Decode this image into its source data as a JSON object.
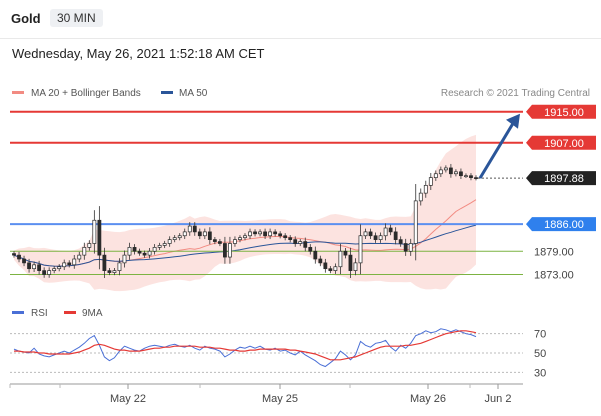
{
  "header": {
    "instrument": "Gold",
    "timeframe": "30 MIN"
  },
  "datetime": "Wednesday, May 26, 2021 1:52:18 AM CET",
  "legend": {
    "items": [
      {
        "label": "MA 20 + Bollinger Bands",
        "color": "#f28b82"
      },
      {
        "label": "MA 50",
        "color": "#2a5599"
      }
    ],
    "copyright": "Research © 2021 Trading Central"
  },
  "rsi_legend": {
    "items": [
      {
        "label": "RSI",
        "color": "#4a6fd6"
      },
      {
        "label": "9MA",
        "color": "#e53935"
      }
    ]
  },
  "chart_data": [
    {
      "type": "candlestick",
      "ylim": [
        1869,
        1917
      ],
      "levels": [
        {
          "value": "1915.00",
          "num": 1915.0,
          "kind": "resistance",
          "color": "#e53935"
        },
        {
          "value": "1907.00",
          "num": 1907.0,
          "kind": "resistance",
          "color": "#e53935"
        },
        {
          "value": "1897.88",
          "num": 1897.88,
          "kind": "last-price",
          "color": "#222222"
        },
        {
          "value": "1886.00",
          "num": 1886.0,
          "kind": "pivot",
          "color": "#2f80ed"
        },
        {
          "value": "1879.00",
          "num": 1879.0,
          "kind": "support",
          "color": "#7cb342"
        },
        {
          "value": "1873.00",
          "num": 1873.0,
          "kind": "support",
          "color": "#7cb342"
        }
      ],
      "x_tick_labels": [
        "May 22",
        "May 25",
        "May 26",
        "Jun 2"
      ],
      "close": [
        1878,
        1877,
        1876,
        1874.5,
        1875.5,
        1874,
        1873,
        1874,
        1874.5,
        1875,
        1876,
        1875.5,
        1877,
        1878,
        1880,
        1881,
        1887,
        1878,
        1874,
        1873.5,
        1874,
        1876,
        1878,
        1880,
        1879,
        1878.5,
        1878,
        1879,
        1880,
        1880.5,
        1881,
        1882,
        1882.5,
        1883,
        1884,
        1885.5,
        1884,
        1883,
        1884,
        1882,
        1881.5,
        1881,
        1877.5,
        1881,
        1882,
        1882.5,
        1883,
        1884,
        1883.5,
        1884,
        1883,
        1884,
        1883.5,
        1883,
        1882.5,
        1882,
        1881,
        1881.5,
        1880,
        1879,
        1877,
        1876,
        1874.5,
        1874,
        1875,
        1879,
        1878,
        1874,
        1876,
        1883,
        1884,
        1883,
        1882,
        1883,
        1885,
        1884,
        1882,
        1881,
        1879,
        1881,
        1892,
        1894,
        1896,
        1898,
        1899,
        1900,
        1900.5,
        1899,
        1899.5,
        1898.5,
        1898.5,
        1898,
        1897.88
      ]
    },
    {
      "type": "line",
      "title": "RSI",
      "ylim": [
        20,
        80
      ],
      "y_ticks": [
        "70",
        "50",
        "30"
      ],
      "rsi": [
        54,
        52,
        51,
        50,
        55,
        49,
        47,
        46,
        48,
        50,
        52,
        50,
        53,
        56,
        60,
        65,
        68,
        58,
        46,
        42,
        45,
        52,
        57,
        55,
        53,
        52,
        55,
        57,
        58,
        57,
        56,
        58,
        59,
        57,
        56,
        58,
        55,
        53,
        57,
        55,
        54,
        52,
        46,
        49,
        53,
        56,
        55,
        57,
        55,
        57,
        54,
        53,
        55,
        52,
        53,
        50,
        48,
        52,
        48,
        45,
        42,
        38,
        36,
        40,
        44,
        52,
        48,
        43,
        48,
        62,
        58,
        56,
        60,
        61,
        63,
        56,
        52,
        58,
        55,
        60,
        68,
        70,
        73,
        71,
        72,
        75,
        74,
        72,
        74,
        72,
        70,
        69,
        67
      ],
      "ma9": [
        52,
        52,
        51,
        51,
        51,
        50,
        50,
        49,
        49,
        49,
        49,
        49,
        50,
        51,
        53,
        55,
        58,
        59,
        58,
        56,
        54,
        53,
        53,
        52,
        52,
        52,
        53,
        54,
        55,
        55,
        56,
        56,
        57,
        57,
        57,
        57,
        57,
        56,
        56,
        56,
        55,
        55,
        54,
        53,
        53,
        52,
        52,
        53,
        53,
        54,
        54,
        54,
        54,
        54,
        54,
        53,
        53,
        52,
        51,
        50,
        49,
        47,
        45,
        43,
        43,
        43,
        44,
        45,
        46,
        48,
        50,
        52,
        54,
        56,
        57,
        57,
        57,
        57,
        58,
        58,
        59,
        60,
        62,
        64,
        66,
        68,
        70,
        71,
        72,
        73,
        73,
        72,
        71
      ]
    }
  ]
}
